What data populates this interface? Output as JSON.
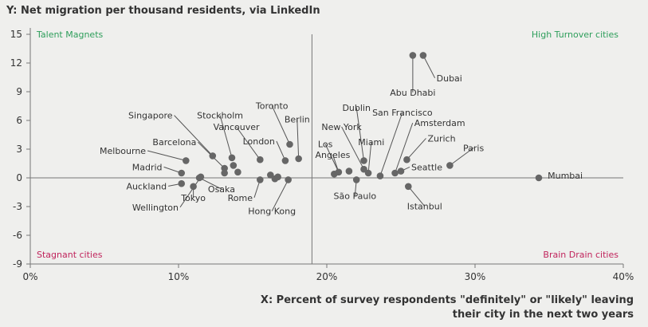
{
  "chart_data": {
    "type": "scatter",
    "title": "Y: Net migration per thousand residents, via LinkedIn",
    "xlabel_line1": "X: Percent of survey respondents \"definitely\" or \"likely\" leaving",
    "xlabel_line2": "their city in the next two years",
    "xlim": [
      0,
      40
    ],
    "ylim": [
      -9,
      15
    ],
    "xticks": [
      0,
      10,
      20,
      30,
      40
    ],
    "xtick_labels": [
      "0%",
      "10%",
      "20%",
      "30%",
      "40%"
    ],
    "yticks": [
      15,
      12,
      9,
      6,
      3,
      0,
      -3,
      -6,
      -9
    ],
    "ytick_labels": [
      "15",
      "12",
      "9",
      "6",
      "3",
      "0",
      "-3",
      "-6",
      "-9"
    ],
    "divider_x": 19,
    "quadrants": [
      {
        "label": "Talent Magnets",
        "pos": "top-left",
        "color": "#2e9e5b"
      },
      {
        "label": "High Turnover cities",
        "pos": "top-right",
        "color": "#2e9e5b"
      },
      {
        "label": "Stagnant cities",
        "pos": "bottom-left",
        "color": "#c0245c"
      },
      {
        "label": "Brain Drain cities",
        "pos": "bottom-right",
        "color": "#c0245c"
      }
    ],
    "colors": {
      "point": "#666666",
      "axis": "#777777",
      "text": "#333333"
    },
    "labeled_points": [
      {
        "name": "Dubai",
        "x": 26.5,
        "y": 12.8,
        "lx": 27.4,
        "ly": 10.1,
        "anchor": "start"
      },
      {
        "name": "Abu Dhabi",
        "x": 25.8,
        "y": 12.8,
        "lx": 25.8,
        "ly": 8.6,
        "anchor": "middle"
      },
      {
        "name": "Singapore",
        "x": 12.3,
        "y": 2.3,
        "lx": 9.6,
        "ly": 6.2,
        "anchor": "end"
      },
      {
        "name": "Stockholm",
        "x": 13.6,
        "y": 2.1,
        "lx": 12.8,
        "ly": 6.2,
        "anchor": "middle"
      },
      {
        "name": "Vancouver",
        "x": 15.5,
        "y": 1.9,
        "lx": 13.9,
        "ly": 5.0,
        "anchor": "middle"
      },
      {
        "name": "Toronto",
        "x": 17.5,
        "y": 3.5,
        "lx": 16.3,
        "ly": 7.2,
        "anchor": "middle"
      },
      {
        "name": "Berlin",
        "x": 18.1,
        "y": 2.0,
        "lx": 18.0,
        "ly": 5.8,
        "anchor": "middle"
      },
      {
        "name": "London",
        "x": 17.2,
        "y": 1.8,
        "lx": 16.5,
        "ly": 3.5,
        "anchor": "end"
      },
      {
        "name": "Barcelona",
        "x": 13.1,
        "y": 1.0,
        "lx": 11.2,
        "ly": 3.4,
        "anchor": "end"
      },
      {
        "name": "Melbourne",
        "x": 10.5,
        "y": 1.8,
        "lx": 7.8,
        "ly": 2.5,
        "anchor": "end"
      },
      {
        "name": "Madrid",
        "x": 10.2,
        "y": 0.5,
        "lx": 8.9,
        "ly": 0.8,
        "anchor": "end"
      },
      {
        "name": "Auckland",
        "x": 10.2,
        "y": -0.6,
        "lx": 9.2,
        "ly": -1.2,
        "anchor": "end"
      },
      {
        "name": "Tokyo",
        "x": 11.0,
        "y": -0.9,
        "lx": 11.0,
        "ly": -2.4,
        "anchor": "middle"
      },
      {
        "name": "Wellington",
        "x": 11.5,
        "y": 0.1,
        "lx": 10.0,
        "ly": -3.4,
        "anchor": "end"
      },
      {
        "name": "Osaka",
        "x": 11.4,
        "y": 0.0,
        "lx": 12.9,
        "ly": -1.5,
        "anchor": "middle"
      },
      {
        "name": "Rome",
        "x": 15.5,
        "y": -0.2,
        "lx": 15.0,
        "ly": -2.4,
        "anchor": "end"
      },
      {
        "name": "Hong Kong",
        "x": 17.4,
        "y": -0.2,
        "lx": 16.3,
        "ly": -3.8,
        "anchor": "middle"
      },
      {
        "name": "Dublin",
        "x": 22.5,
        "y": 1.8,
        "lx": 22.0,
        "ly": 7.0,
        "anchor": "middle"
      },
      {
        "name": "San Francisco",
        "x": 23.6,
        "y": 0.2,
        "lx": 25.1,
        "ly": 6.5,
        "anchor": "middle"
      },
      {
        "name": "Amsterdam",
        "x": 24.6,
        "y": 0.5,
        "lx": 25.9,
        "ly": 5.4,
        "anchor": "start"
      },
      {
        "name": "New York",
        "x": 22.5,
        "y": 0.9,
        "lx": 21.0,
        "ly": 5.0,
        "anchor": "middle"
      },
      {
        "name": "Miami",
        "x": 22.8,
        "y": 0.5,
        "lx": 23.0,
        "ly": 3.4,
        "anchor": "middle"
      },
      {
        "name": "Zurich",
        "x": 25.4,
        "y": 1.9,
        "lx": 26.8,
        "ly": 3.8,
        "anchor": "start"
      },
      {
        "name": "Los",
        "x": 20.8,
        "y": 0.6,
        "lx": 19.9,
        "ly": 3.2,
        "anchor": "middle"
      },
      {
        "name": "Angeles",
        "x": 20.8,
        "y": 0.6,
        "lx": 20.4,
        "ly": 2.1,
        "anchor": "middle"
      },
      {
        "name": "Paris",
        "x": 28.3,
        "y": 1.3,
        "lx": 29.9,
        "ly": 2.8,
        "anchor": "middle"
      },
      {
        "name": "Seattle",
        "x": 25.0,
        "y": 0.7,
        "lx": 25.7,
        "ly": 0.8,
        "anchor": "start"
      },
      {
        "name": "Mumbai",
        "x": 34.3,
        "y": 0.0,
        "lx": 34.9,
        "ly": -0.1,
        "anchor": "start"
      },
      {
        "name": "São Paulo",
        "x": 22.0,
        "y": -0.2,
        "lx": 21.9,
        "ly": -2.2,
        "anchor": "middle"
      },
      {
        "name": "Istanbul",
        "x": 25.5,
        "y": -0.9,
        "lx": 26.6,
        "ly": -3.3,
        "anchor": "middle"
      }
    ],
    "unlabeled_points": [
      {
        "x": 13.1,
        "y": 0.5
      },
      {
        "x": 13.7,
        "y": 1.3
      },
      {
        "x": 14.0,
        "y": 0.6
      },
      {
        "x": 16.2,
        "y": 0.3
      },
      {
        "x": 16.5,
        "y": -0.1
      },
      {
        "x": 16.7,
        "y": 0.1
      },
      {
        "x": 20.5,
        "y": 0.4
      },
      {
        "x": 21.5,
        "y": 0.7
      }
    ]
  }
}
